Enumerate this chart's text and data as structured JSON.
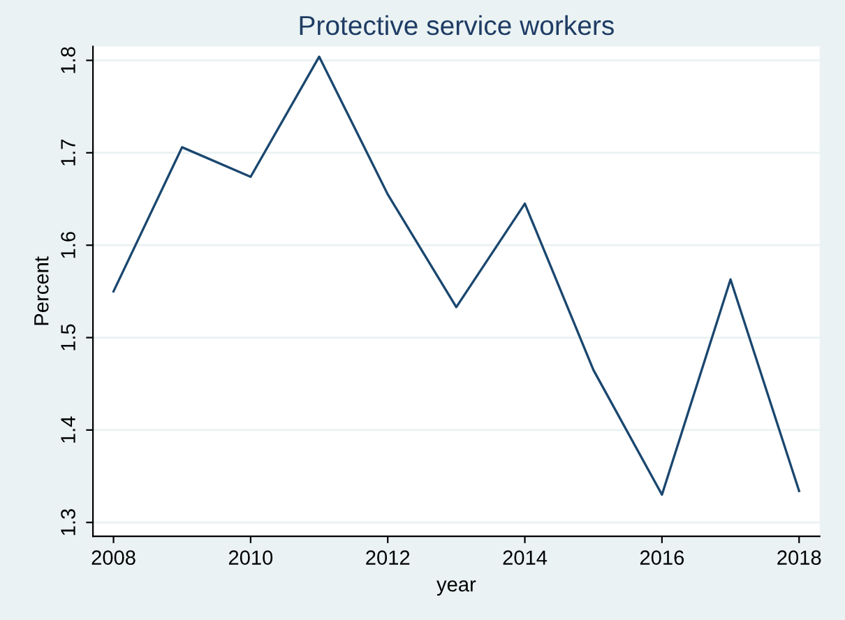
{
  "chart_data": {
    "type": "line",
    "title": "Protective service workers",
    "xlabel": "year",
    "ylabel": "Percent",
    "x": [
      2008,
      2009,
      2010,
      2011,
      2012,
      2013,
      2014,
      2015,
      2016,
      2017,
      2018
    ],
    "series": [
      {
        "color": "#1a476f",
        "values": [
          1.55,
          1.706,
          1.674,
          1.804,
          1.655,
          1.533,
          1.645,
          1.465,
          1.33,
          1.563,
          1.334
        ]
      }
    ],
    "xlim": [
      2007.7,
      2018.3
    ],
    "xticks": [
      2008,
      2010,
      2012,
      2014,
      2016,
      2018
    ],
    "ylim": [
      1.285,
      1.815
    ],
    "yticks": [
      1.3,
      1.4,
      1.5,
      1.6,
      1.7,
      1.8
    ],
    "grid": "y"
  }
}
